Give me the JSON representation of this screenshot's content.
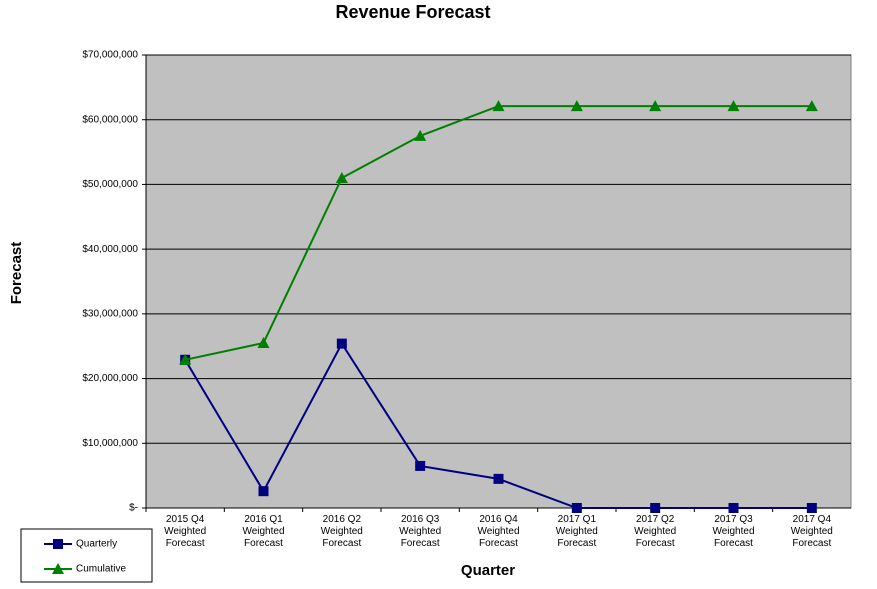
{
  "chart_data": {
    "type": "line",
    "title": "Revenue Forecast",
    "x_label": "Quarter",
    "y_label": "Forecast",
    "categories": [
      "2015 Q4 Weighted Forecast",
      "2016 Q1 Weighted Forecast",
      "2016 Q2 Weighted Forecast",
      "2016 Q3 Weighted Forecast",
      "2016 Q4 Weighted Forecast",
      "2017 Q1 Weighted Forecast",
      "2017 Q2 Weighted Forecast",
      "2017 Q3 Weighted Forecast",
      "2017 Q4 Weighted Forecast"
    ],
    "series": [
      {
        "name": "Quarterly",
        "color": "#000080",
        "marker": "square",
        "values": [
          22900000,
          2600000,
          25400000,
          6500000,
          4500000,
          0,
          0,
          0,
          0
        ]
      },
      {
        "name": "Cumulative",
        "color": "#008000",
        "marker": "triangle",
        "values": [
          22900000,
          25500000,
          51000000,
          57500000,
          62100000,
          62100000,
          62100000,
          62100000,
          62100000
        ]
      }
    ],
    "ylim": [
      0,
      70000000
    ],
    "yticks": [
      {
        "value": 0,
        "label": "$-"
      },
      {
        "value": 10000000,
        "label": "$10,000,000"
      },
      {
        "value": 20000000,
        "label": "$20,000,000"
      },
      {
        "value": 30000000,
        "label": "$30,000,000"
      },
      {
        "value": 40000000,
        "label": "$40,000,000"
      },
      {
        "value": 50000000,
        "label": "$50,000,000"
      },
      {
        "value": 60000000,
        "label": "$60,000,000"
      },
      {
        "value": 70000000,
        "label": "$70,000,000"
      }
    ],
    "grid": true,
    "legend": "bottom-left",
    "plot_background": "#c0c0c0"
  }
}
